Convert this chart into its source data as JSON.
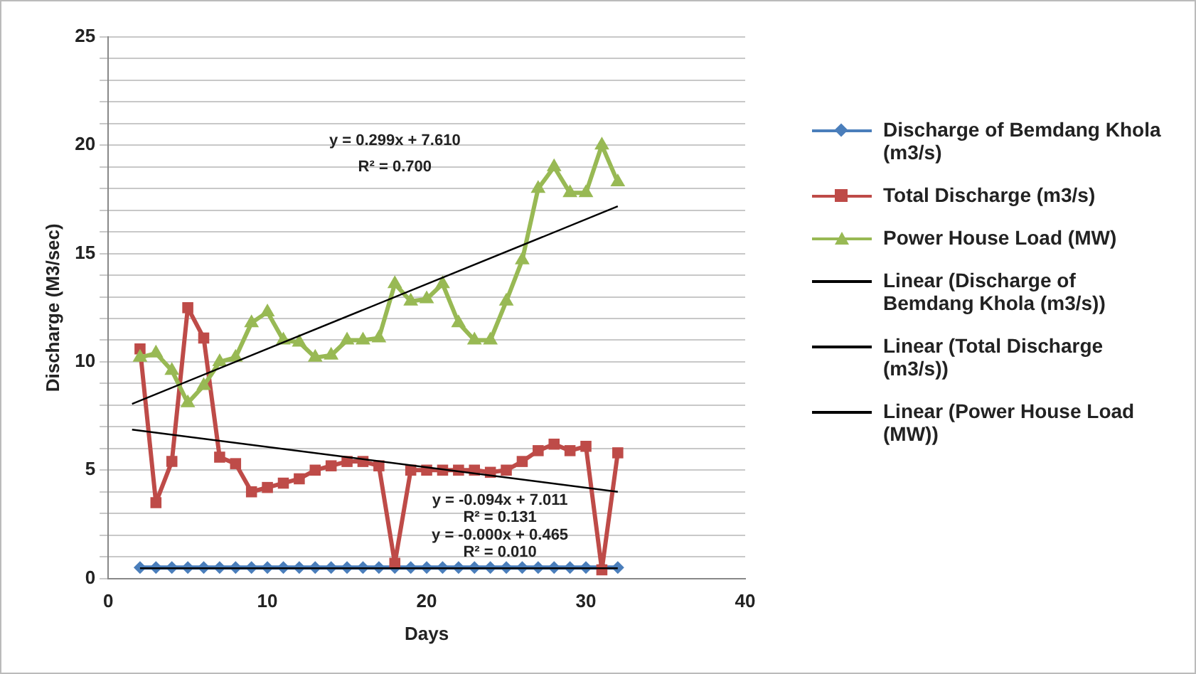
{
  "chart_data": {
    "type": "line",
    "xlabel": "Days",
    "ylabel": "Discharge (M3/sec)",
    "x": [
      2,
      3,
      4,
      5,
      6,
      7,
      8,
      9,
      10,
      11,
      12,
      13,
      14,
      15,
      16,
      17,
      18,
      19,
      20,
      21,
      22,
      23,
      24,
      25,
      26,
      27,
      28,
      29,
      30,
      31,
      32
    ],
    "series": [
      {
        "name": "Discharge of Bemdang Khola (m3/s)",
        "color": "#4a7ebb",
        "marker": "diamond",
        "values": [
          0.5,
          0.5,
          0.5,
          0.5,
          0.5,
          0.5,
          0.5,
          0.5,
          0.5,
          0.5,
          0.5,
          0.5,
          0.5,
          0.5,
          0.5,
          0.5,
          0.5,
          0.5,
          0.5,
          0.5,
          0.5,
          0.5,
          0.5,
          0.5,
          0.5,
          0.5,
          0.5,
          0.5,
          0.5,
          0.5,
          0.5
        ]
      },
      {
        "name": "Total Discharge (m3/s)",
        "color": "#be4b48",
        "marker": "square",
        "values": [
          10.6,
          3.5,
          5.4,
          12.5,
          11.1,
          5.6,
          5.3,
          4.0,
          4.2,
          4.4,
          4.6,
          5.0,
          5.2,
          5.4,
          5.4,
          5.2,
          0.7,
          5.0,
          5.0,
          5.0,
          5.0,
          5.0,
          4.9,
          5.0,
          5.4,
          5.9,
          6.2,
          5.9,
          6.1,
          0.4,
          5.8
        ]
      },
      {
        "name": "Power House Load (MW)",
        "color": "#98b954",
        "marker": "triangle",
        "values": [
          10.2,
          10.4,
          9.6,
          8.1,
          8.9,
          10.0,
          10.2,
          11.8,
          12.3,
          11.0,
          10.9,
          10.2,
          10.3,
          11.0,
          11.0,
          11.1,
          13.6,
          12.8,
          12.9,
          13.6,
          11.8,
          11.0,
          11.0,
          12.8,
          14.7,
          18.0,
          19.0,
          17.8,
          17.8,
          20.0,
          18.3
        ]
      },
      {
        "name": "Linear (Discharge of Bemdang Khola (m3/s))",
        "type": "line",
        "color": "#000000",
        "marker": "none",
        "x": [
          2,
          32
        ],
        "values": [
          0.47,
          0.47
        ]
      },
      {
        "name": "Linear (Total Discharge (m3/s))",
        "type": "line",
        "color": "#000000",
        "marker": "none",
        "x": [
          1.5,
          32
        ],
        "values": [
          6.87,
          4.0
        ]
      },
      {
        "name": "Linear (Power House Load (MW))",
        "type": "line",
        "color": "#000000",
        "marker": "none",
        "x": [
          1.5,
          32
        ],
        "values": [
          8.06,
          17.18
        ]
      }
    ],
    "xlim": [
      0,
      40
    ],
    "xticks": [
      0,
      10,
      20,
      30,
      40
    ],
    "ylim": [
      0,
      25
    ],
    "yticks": [
      0,
      {
        "value": 1,
        "label": null
      },
      {
        "value": 2,
        "label": null
      },
      {
        "value": 3,
        "label": null
      },
      {
        "value": 4,
        "label": null
      },
      5,
      {
        "value": 6,
        "label": null
      },
      {
        "value": 7,
        "label": null
      },
      {
        "value": 8,
        "label": null
      },
      {
        "value": 9,
        "label": null
      },
      10,
      {
        "value": 11,
        "label": null
      },
      {
        "value": 12,
        "label": null
      },
      {
        "value": 13,
        "label": null
      },
      {
        "value": 14,
        "label": null
      },
      15,
      {
        "value": 16,
        "label": null
      },
      {
        "value": 17,
        "label": null
      },
      {
        "value": 18,
        "label": null
      },
      {
        "value": 19,
        "label": null
      },
      20,
      {
        "value": 21,
        "label": null
      },
      {
        "value": 22,
        "label": null
      },
      {
        "value": 23,
        "label": null
      },
      {
        "value": 24,
        "label": null
      },
      25
    ],
    "grid": "y",
    "legend": "right",
    "annotations": [
      "y = 0.299x + 7.610",
      "R² = 0.700",
      "y = -0.094x + 7.011",
      "R² = 0.131",
      "y = -0.000x + 0.465",
      "R² = 0.010"
    ]
  }
}
